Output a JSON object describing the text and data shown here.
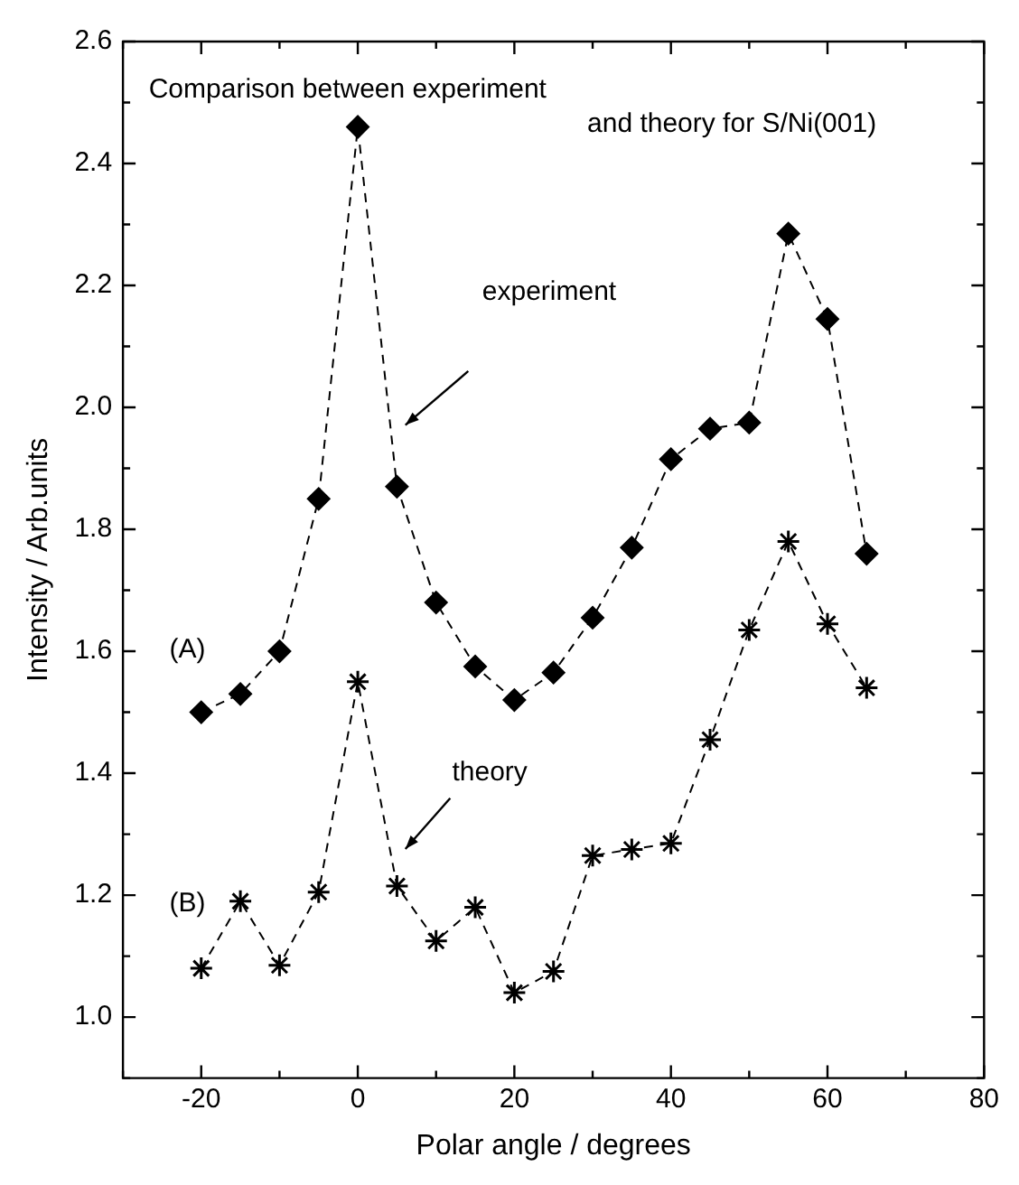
{
  "chart_data": {
    "type": "line",
    "xlabel": "Polar angle / degrees",
    "ylabel": "Intensity / Arb.units",
    "annotations": [
      "Comparison between experiment",
      "and theory for S/Ni(001)",
      "(A)",
      "(B)",
      "experiment",
      "theory"
    ],
    "x": [
      -20,
      -15,
      -10,
      -5,
      0,
      5,
      10,
      15,
      20,
      25,
      30,
      35,
      40,
      45,
      50,
      55,
      60,
      65
    ],
    "series": [
      {
        "color": "#000000",
        "marker": "diamond",
        "line_style": "dashed",
        "values": [
          1.5,
          1.53,
          1.6,
          1.85,
          2.46,
          1.87,
          1.68,
          1.575,
          1.52,
          1.565,
          1.655,
          1.77,
          1.915,
          1.965,
          1.975,
          2.285,
          2.145,
          1.76
        ]
      },
      {
        "color": "#000000",
        "marker": "cross",
        "line_style": "dashed",
        "values": [
          1.08,
          1.19,
          1.085,
          1.205,
          1.55,
          1.215,
          1.125,
          1.18,
          1.04,
          1.075,
          1.265,
          1.275,
          1.285,
          1.455,
          1.635,
          1.78,
          1.645,
          1.54
        ]
      }
    ],
    "xlim": [
      -30,
      80
    ],
    "xticks": [
      {
        "value": -30,
        "label": null
      },
      -20,
      {
        "value": -10,
        "label": null
      },
      0,
      {
        "value": 10,
        "label": null
      },
      20,
      {
        "value": 30,
        "label": null
      },
      40,
      {
        "value": 50,
        "label": null
      },
      60,
      {
        "value": 70,
        "label": null
      },
      80
    ],
    "ylim": [
      0.9,
      2.6
    ],
    "yticks": [
      {
        "value": 0.9,
        "label": null
      },
      {
        "value": 1,
        "label": "1.0"
      },
      {
        "value": 1.1,
        "label": null
      },
      {
        "value": 1.2,
        "label": "1.2"
      },
      {
        "value": 1.3,
        "label": null
      },
      {
        "value": 1.4,
        "label": "1.4"
      },
      {
        "value": 1.5,
        "label": null
      },
      {
        "value": 1.6,
        "label": "1.6"
      },
      {
        "value": 1.7,
        "label": null
      },
      {
        "value": 1.8,
        "label": "1.8"
      },
      {
        "value": 1.9,
        "label": null
      },
      {
        "value": 2,
        "label": "2.0"
      },
      {
        "value": 2.1,
        "label": null
      },
      {
        "value": 2.2,
        "label": "2.2"
      },
      {
        "value": 2.3,
        "label": null
      },
      {
        "value": 2.4,
        "label": "2.4"
      },
      {
        "value": 2.5,
        "label": null
      },
      {
        "value": 2.6,
        "label": "2.6"
      }
    ],
    "grid": false,
    "legend": false
  }
}
